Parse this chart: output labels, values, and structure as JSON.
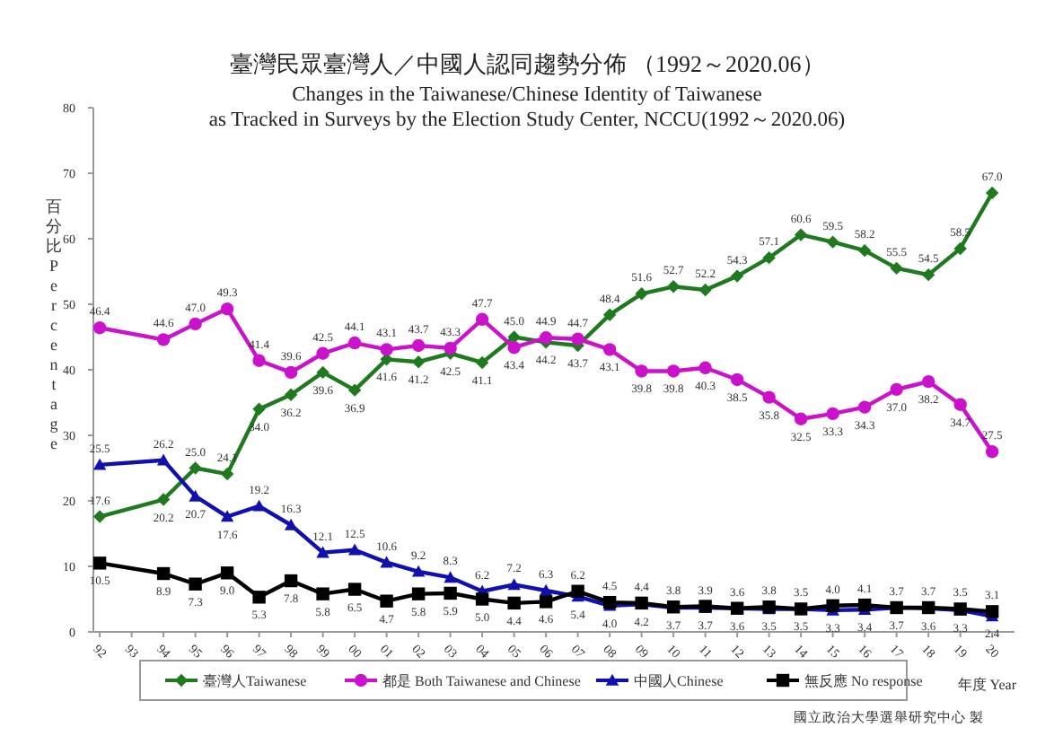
{
  "chart_data": {
    "type": "line",
    "title": "臺灣民眾臺灣人／中國人認同趨勢分佈 （1992～2020.06）",
    "subtitle": "Changes in the Taiwanese/Chinese Identity of Taiwanese\nas Tracked in Surveys by the Election Study Center, NCCU(1992～2020.06)",
    "xlabel": "年度 Year",
    "ylabel": "百分比 Percentage",
    "annotations": [
      "國立政治大學選舉研究中心 製"
    ],
    "x": [
      1992,
      1994,
      1995,
      1996,
      1997,
      1998,
      1999,
      2000,
      2001,
      2002,
      2003,
      2004,
      2005,
      2006,
      2007,
      2008,
      2009,
      2010,
      2011,
      2012,
      2013,
      2014,
      2015,
      2016,
      2017,
      2018,
      2019,
      2020
    ],
    "xlim": [
      1991.8,
      2020.7
    ],
    "xticks": [
      {
        "value": 1992,
        "label": "92"
      },
      {
        "value": 1993,
        "label": "93"
      },
      {
        "value": 1994,
        "label": "94"
      },
      {
        "value": 1995,
        "label": "95"
      },
      {
        "value": 1996,
        "label": "96"
      },
      {
        "value": 1997,
        "label": "97"
      },
      {
        "value": 1998,
        "label": "98"
      },
      {
        "value": 1999,
        "label": "99"
      },
      {
        "value": 2000,
        "label": "00"
      },
      {
        "value": 2001,
        "label": "01"
      },
      {
        "value": 2002,
        "label": "02"
      },
      {
        "value": 2003,
        "label": "03"
      },
      {
        "value": 2004,
        "label": "04"
      },
      {
        "value": 2005,
        "label": "05"
      },
      {
        "value": 2006,
        "label": "06"
      },
      {
        "value": 2007,
        "label": "07"
      },
      {
        "value": 2008,
        "label": "08"
      },
      {
        "value": 2009,
        "label": "09"
      },
      {
        "value": 2010,
        "label": "10"
      },
      {
        "value": 2011,
        "label": "11"
      },
      {
        "value": 2012,
        "label": "12"
      },
      {
        "value": 2013,
        "label": "13"
      },
      {
        "value": 2014,
        "label": "14"
      },
      {
        "value": 2015,
        "label": "15"
      },
      {
        "value": 2016,
        "label": "16"
      },
      {
        "value": 2017,
        "label": "17"
      },
      {
        "value": 2018,
        "label": "18"
      },
      {
        "value": 2019,
        "label": "19"
      },
      {
        "value": 2020,
        "label": "20"
      }
    ],
    "ylim": [
      0,
      80
    ],
    "yticks": [
      0,
      10,
      20,
      30,
      40,
      50,
      60,
      70,
      80
    ],
    "legend": "bottom",
    "series": [
      {
        "name": "臺灣人Taiwanese",
        "color": "#1f7a1f",
        "marker": "diamond",
        "values": [
          17.6,
          20.2,
          25.0,
          24.1,
          34.0,
          36.2,
          39.6,
          36.9,
          41.6,
          41.2,
          42.5,
          41.1,
          45.0,
          44.2,
          43.7,
          48.4,
          51.6,
          52.7,
          52.2,
          54.3,
          57.1,
          60.6,
          59.5,
          58.2,
          55.5,
          54.5,
          58.5,
          67.0
        ],
        "value_labels": [
          "17.6",
          "20.2",
          "25.0",
          "24.1",
          "34.0",
          "36.2",
          "39.6",
          "36.9",
          "41.6",
          "41.2",
          "42.5",
          "41.1",
          "45.0",
          "44.2",
          "43.7",
          "48.4",
          "51.6",
          "52.7",
          "52.2",
          "54.3",
          "57.1",
          "60.6",
          "59.5",
          "58.2",
          "55.5",
          "54.5",
          "58.5",
          "67.0"
        ]
      },
      {
        "name": "都是 Both Taiwanese and Chinese",
        "color": "#cc11cc",
        "marker": "circle",
        "values": [
          46.4,
          44.6,
          47.0,
          49.3,
          41.4,
          39.6,
          42.5,
          44.1,
          43.1,
          43.7,
          43.3,
          47.7,
          43.4,
          44.9,
          44.7,
          43.1,
          39.8,
          39.8,
          40.3,
          38.5,
          35.8,
          32.5,
          33.3,
          34.3,
          37.0,
          38.2,
          34.7,
          27.5
        ],
        "value_labels": [
          "46.4",
          "44.6",
          "47.0",
          "49.3",
          "41.4",
          "39.6",
          "42.5",
          "44.1",
          "43.1",
          "43.7",
          "43.3",
          "47.7",
          "43.4",
          "44.9",
          "44.7",
          "43.1",
          "39.8",
          "39.8",
          "40.3",
          "38.5",
          "35.8",
          "32.5",
          "33.3",
          "34.3",
          "37.0",
          "38.2",
          "34.7",
          "27.5"
        ]
      },
      {
        "name": "中國人Chinese",
        "color": "#1010b0",
        "marker": "triangle",
        "values": [
          25.5,
          26.2,
          20.7,
          17.6,
          19.2,
          16.3,
          12.1,
          12.5,
          10.6,
          9.2,
          8.3,
          6.2,
          7.2,
          6.3,
          5.4,
          4.0,
          4.2,
          3.7,
          3.7,
          3.6,
          3.5,
          3.5,
          3.3,
          3.4,
          3.7,
          3.6,
          3.3,
          2.4
        ],
        "value_labels": [
          "25.5",
          "26.2",
          "20.7",
          "17.6",
          "19.2",
          "16.3",
          "12.1",
          "12.5",
          "10.6",
          "9.2",
          "8.3",
          "6.2",
          "7.2",
          "6.3",
          "5.4",
          "4.0",
          "4.2",
          "3.7",
          "3.7",
          "3.6",
          "3.5",
          "3.5",
          "3.3",
          "3.4",
          "3.7",
          "3.6",
          "3.3",
          "2.4"
        ]
      },
      {
        "name": "無反應 No response",
        "color": "#000000",
        "marker": "square",
        "values": [
          10.5,
          8.9,
          7.3,
          9.0,
          5.3,
          7.8,
          5.8,
          6.5,
          4.7,
          5.8,
          5.9,
          5.0,
          4.4,
          4.6,
          6.2,
          4.5,
          4.4,
          3.8,
          3.9,
          3.6,
          3.8,
          3.5,
          4.0,
          4.1,
          3.7,
          3.7,
          3.5,
          3.1
        ],
        "value_labels": [
          "10.5",
          "8.9",
          "7.3",
          "9.0",
          "5.3",
          "7.8",
          "5.8",
          "6.5",
          "4.7",
          "5.8",
          "5.9",
          "5.0",
          "4.4",
          "4.6",
          "6.2",
          "4.5",
          "4.4",
          "3.8",
          "3.9",
          "3.6",
          "3.8",
          "3.5",
          "4.0",
          "4.1",
          "3.7",
          "3.7",
          "3.5",
          "3.1"
        ]
      }
    ]
  }
}
